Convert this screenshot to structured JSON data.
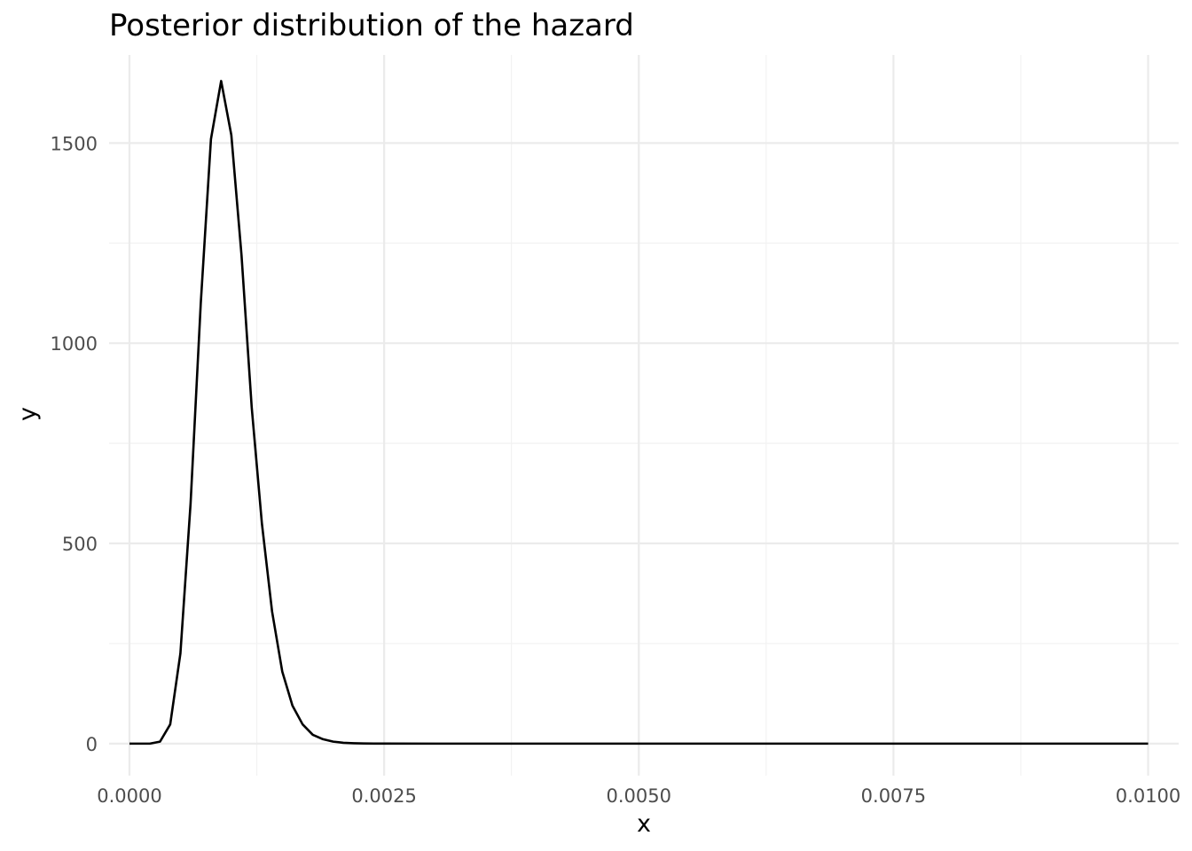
{
  "chart_data": {
    "type": "line",
    "title": "Posterior distribution of the hazard",
    "xlabel": "x",
    "ylabel": "y",
    "xlim": [
      -0.0002,
      0.0103
    ],
    "ylim": [
      -80,
      1720
    ],
    "x_ticks": [
      0,
      0.0025,
      0.005,
      0.0075,
      0.01
    ],
    "x_tick_labels": [
      "0.0000",
      "0.0025",
      "0.0050",
      "0.0075",
      "0.0100"
    ],
    "x_minor_ticks": [
      0.00125,
      0.00375,
      0.00625,
      0.00875
    ],
    "y_ticks": [
      0,
      500,
      1000,
      1500
    ],
    "y_tick_labels": [
      "0",
      "500",
      "1000",
      "1500"
    ],
    "y_minor_ticks": [
      250,
      750,
      1250
    ],
    "grid": true,
    "legend": "none",
    "series": [
      {
        "color": "#000000",
        "x": [
          0,
          0.0001,
          0.0002,
          0.0003,
          0.0004,
          0.0005,
          0.0006,
          0.0007,
          0.0008,
          0.0009,
          0.001,
          0.0011,
          0.0012,
          0.0013,
          0.0014,
          0.0015,
          0.0016,
          0.0017,
          0.0018,
          0.0019,
          0.002,
          0.0021,
          0.0022,
          0.0023,
          0.0024,
          0.0025,
          0.003,
          0.0035,
          0.004,
          0.005,
          0.006,
          0.007,
          0.008,
          0.009,
          0.01
        ],
        "y": [
          0,
          0,
          0,
          5,
          48,
          225,
          600,
          1100,
          1510,
          1655,
          1520,
          1220,
          840,
          550,
          330,
          180,
          95,
          48,
          22,
          11,
          5,
          2,
          1,
          0.5,
          0.2,
          0.1,
          0,
          0,
          0,
          0,
          0,
          0,
          0,
          0,
          0
        ]
      }
    ]
  }
}
